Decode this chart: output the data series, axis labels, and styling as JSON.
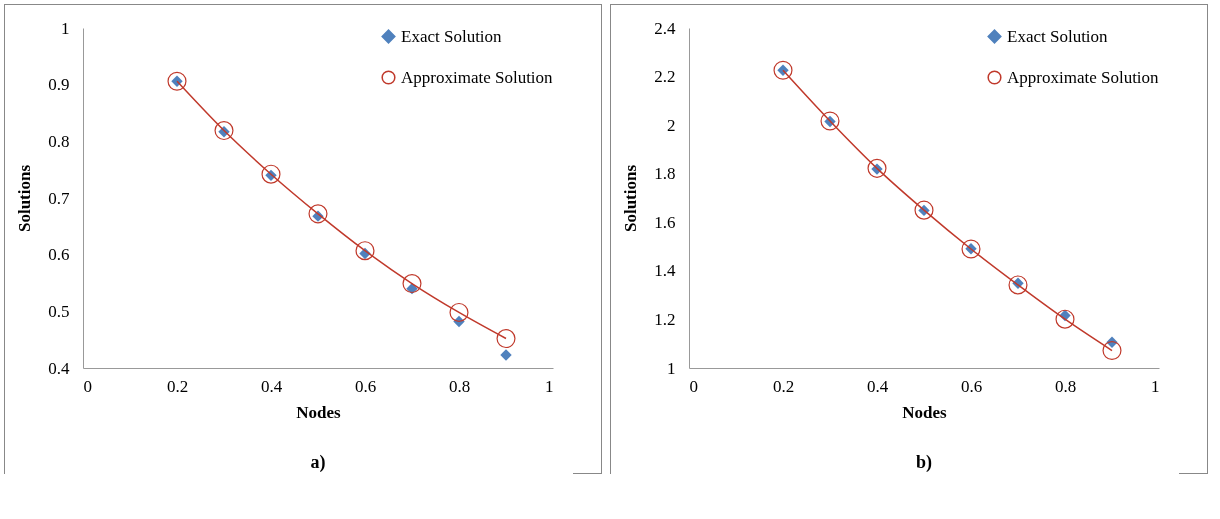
{
  "chart_data": [
    {
      "type": "line",
      "title": "a)",
      "xlabel": "Nodes",
      "ylabel": "Solutions",
      "xlim": [
        0,
        1
      ],
      "xticks": [
        0,
        0.2,
        0.4,
        0.6,
        0.8,
        1
      ],
      "ylim": [
        0.4,
        1
      ],
      "yticks": [
        0.4,
        0.5,
        0.6,
        0.7,
        0.8,
        0.9,
        1
      ],
      "grid": false,
      "legend": "top right",
      "x": [
        0.2,
        0.3,
        0.4,
        0.5,
        0.6,
        0.7,
        0.8,
        0.9
      ],
      "series": [
        {
          "name": "Exact Solution",
          "type": "scatter",
          "marker": "diamond",
          "color": "#4f81bd",
          "values": [
            0.906,
            0.817,
            0.74,
            0.668,
            0.602,
            0.54,
            0.482,
            0.423
          ]
        },
        {
          "name": "Approximate Solution",
          "type": "line",
          "marker": "circle",
          "line_style": "solid",
          "color": "#c0392b",
          "values": [
            0.906,
            0.819,
            0.742,
            0.672,
            0.607,
            0.549,
            0.498,
            0.452
          ]
        }
      ]
    },
    {
      "type": "line",
      "title": "b)",
      "xlabel": "Nodes",
      "ylabel": "Solutions",
      "xlim": [
        0,
        1
      ],
      "xticks": [
        0,
        0.2,
        0.4,
        0.6,
        0.8,
        1
      ],
      "ylim": [
        1,
        2.4
      ],
      "yticks": [
        1,
        1.2,
        1.4,
        1.6,
        1.8,
        2,
        2.2,
        2.4
      ],
      "grid": false,
      "legend": "top right",
      "x": [
        0.2,
        0.3,
        0.4,
        0.5,
        0.6,
        0.7,
        0.8,
        0.9
      ],
      "series": [
        {
          "name": "Exact Solution",
          "type": "scatter",
          "marker": "diamond",
          "color": "#4f81bd",
          "values": [
            2.226,
            2.015,
            1.819,
            1.649,
            1.491,
            1.349,
            1.216,
            1.106
          ]
        },
        {
          "name": "Approximate Solution",
          "type": "line",
          "marker": "circle",
          "line_style": "solid",
          "color": "#c0392b",
          "values": [
            2.226,
            2.017,
            1.822,
            1.65,
            1.49,
            1.342,
            1.201,
            1.072
          ]
        }
      ]
    }
  ]
}
